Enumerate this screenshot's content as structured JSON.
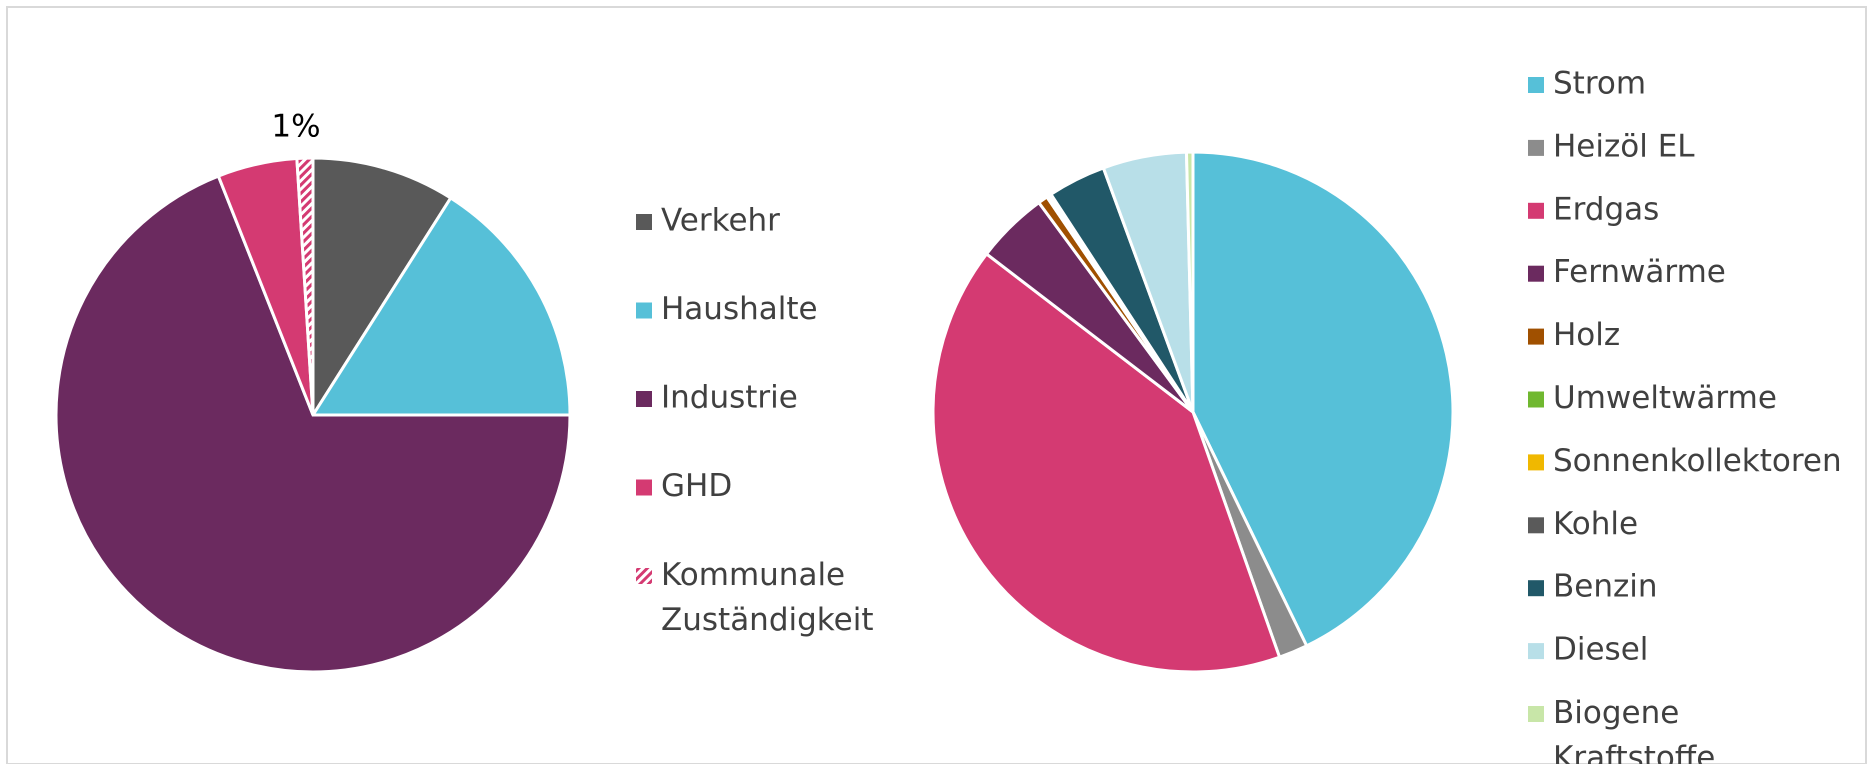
{
  "chart_data": [
    {
      "type": "pie",
      "categories": [
        "Verkehr",
        "Haushalte",
        "Industrie",
        "GHD",
        "Kommunale Zuständigkeit"
      ],
      "values": [
        9,
        16,
        69,
        5,
        1
      ],
      "value_labels": [
        null,
        null,
        null,
        null,
        "1%"
      ],
      "colors": [
        "#595959",
        "#56c0d8",
        "#6b2a5f",
        "#d43a72",
        "#d43a72"
      ],
      "hatch": [
        false,
        false,
        false,
        false,
        true
      ],
      "legend": "right"
    },
    {
      "type": "pie",
      "categories": [
        "Strom",
        "Heizöl EL",
        "Erdgas",
        "Fernwärme",
        "Holz",
        "Umweltwärme",
        "Sonnenkollektoren",
        "Kohle",
        "Benzin",
        "Diesel",
        "Biogene Kraftstoffe"
      ],
      "values": [
        42.8,
        1.8,
        40.8,
        4.5,
        0.6,
        0.1,
        0.1,
        0.1,
        3.6,
        5.2,
        0.4
      ],
      "colors": [
        "#56c0d8",
        "#8c8c8c",
        "#d43a72",
        "#6b2a5f",
        "#a05000",
        "#70b830",
        "#f0b800",
        "#5a5a5a",
        "#215868",
        "#b8dfe8",
        "#c8e6a8"
      ],
      "legend": "right"
    }
  ]
}
